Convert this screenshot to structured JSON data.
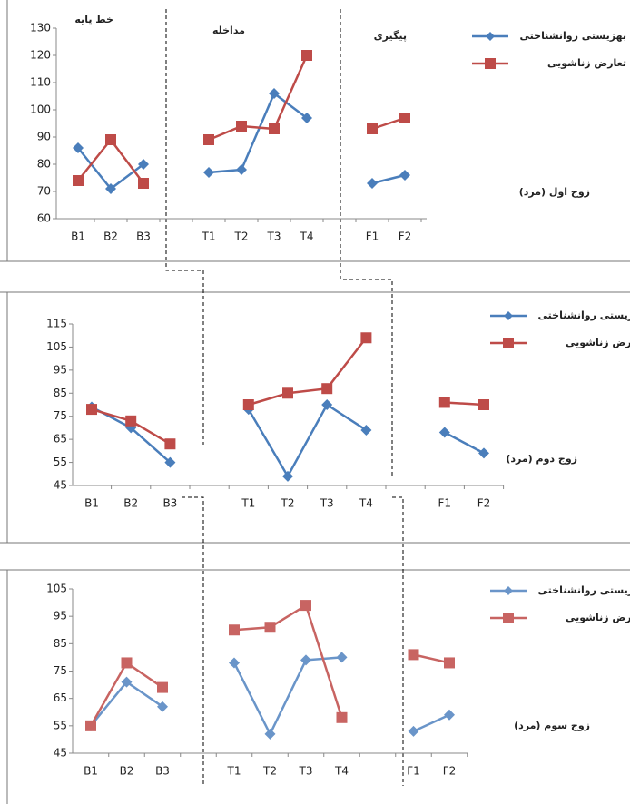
{
  "chart_data": [
    {
      "type": "line",
      "annotation": "زوج اول (مرد)",
      "phase_labels": [
        "خط پایه",
        "مداخله",
        "پیگیری"
      ],
      "categories": [
        "B1",
        "B2",
        "B3",
        null,
        "T1",
        "T2",
        "T3",
        "T4",
        null,
        "F1",
        "F2"
      ],
      "ylim": [
        60,
        130
      ],
      "yticks": [
        60,
        70,
        80,
        90,
        100,
        110,
        120,
        130
      ],
      "grid": false,
      "series": [
        {
          "name": "بهزیستی روانشناختی",
          "color": "#4a7ebb",
          "marker": "diamond",
          "values": [
            86,
            71,
            80,
            null,
            77,
            78,
            106,
            97,
            null,
            73,
            76
          ]
        },
        {
          "name": "تعارض زناشویی",
          "color": "#be4b48",
          "marker": "square",
          "values": [
            74,
            89,
            73,
            null,
            89,
            94,
            93,
            120,
            null,
            93,
            97
          ]
        }
      ]
    },
    {
      "type": "line",
      "annotation": "زوج دوم (مرد)",
      "categories": [
        "B1",
        "B2",
        "B3",
        null,
        "T1",
        "T2",
        "T3",
        "T4",
        null,
        "F1",
        "F2"
      ],
      "ylim": [
        45,
        115
      ],
      "yticks": [
        45,
        55,
        65,
        75,
        85,
        95,
        105,
        115
      ],
      "grid": false,
      "series": [
        {
          "name": "بهزیستی روانشناختی",
          "color": "#4a7ebb",
          "marker": "diamond",
          "values": [
            79,
            70,
            55,
            null,
            78,
            49,
            80,
            69,
            null,
            68,
            59
          ]
        },
        {
          "name": "تعارض زناشویی",
          "color": "#be4b48",
          "marker": "square",
          "values": [
            78,
            73,
            63,
            null,
            80,
            85,
            87,
            109,
            null,
            81,
            80
          ]
        }
      ]
    },
    {
      "type": "line",
      "annotation": "زوج سوم (مرد)",
      "categories": [
        "B1",
        "B2",
        "B3",
        null,
        "T1",
        "T2",
        "T3",
        "T4",
        null,
        "F1",
        "F2"
      ],
      "ylim": [
        45,
        105
      ],
      "yticks": [
        45,
        55,
        65,
        75,
        85,
        95,
        105
      ],
      "grid": false,
      "series": [
        {
          "name": "بهزیستی روانشناختی",
          "color": "#6a95c9",
          "marker": "diamond",
          "values": [
            55,
            71,
            62,
            null,
            78,
            52,
            79,
            80,
            null,
            53,
            59
          ]
        },
        {
          "name": "تعارض زناشویی",
          "color": "#c86462",
          "marker": "square",
          "values": [
            55,
            78,
            69,
            null,
            90,
            91,
            99,
            58,
            null,
            81,
            78
          ]
        }
      ]
    }
  ]
}
